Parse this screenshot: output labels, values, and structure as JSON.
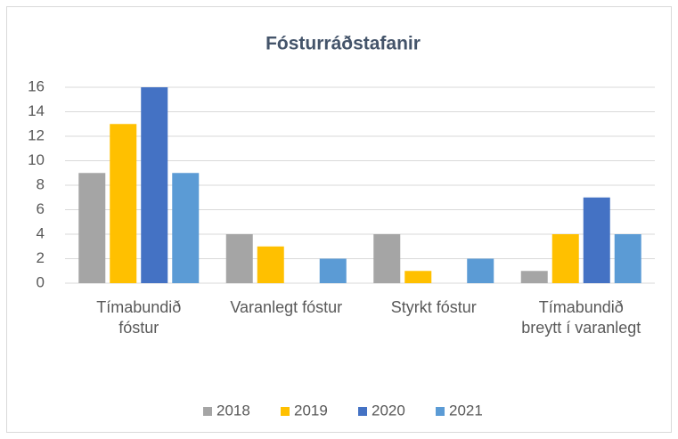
{
  "chart_data": {
    "type": "bar",
    "title": "Fósturráðstafanir",
    "categories": [
      "Tímabundið fóstur",
      "Varanlegt fóstur",
      "Styrkt fóstur",
      "Tímabundið breytt í varanlegt"
    ],
    "series": [
      {
        "name": "2018",
        "color": "#a5a5a5",
        "values": [
          9,
          4,
          4,
          1
        ]
      },
      {
        "name": "2019",
        "color": "#ffc000",
        "values": [
          13,
          3,
          1,
          4
        ]
      },
      {
        "name": "2020",
        "color": "#4472c4",
        "values": [
          16,
          0,
          0,
          7
        ]
      },
      {
        "name": "2021",
        "color": "#5b9bd5",
        "values": [
          9,
          2,
          2,
          4
        ]
      }
    ],
    "ylim": [
      0,
      16
    ],
    "yticks": [
      0,
      2,
      4,
      6,
      8,
      10,
      12,
      14,
      16
    ],
    "grid": true,
    "legend": "bottom"
  }
}
